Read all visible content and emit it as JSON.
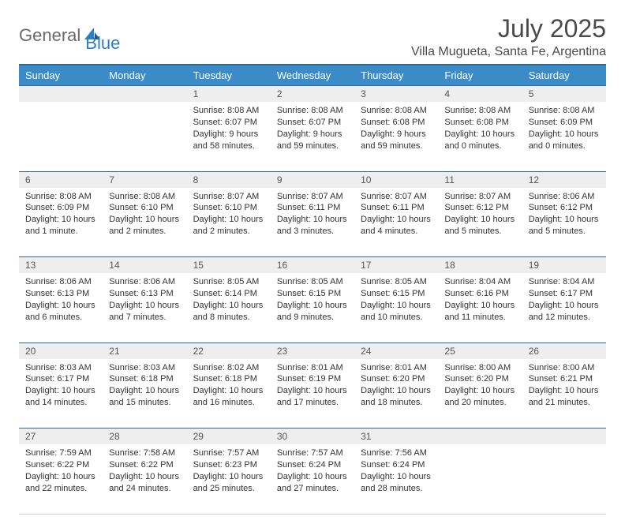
{
  "brand": {
    "part1": "General",
    "part2": "Blue"
  },
  "title": "July 2025",
  "location": "Villa Mugueta, Santa Fe, Argentina",
  "day_headers": [
    "Sunday",
    "Monday",
    "Tuesday",
    "Wednesday",
    "Thursday",
    "Friday",
    "Saturday"
  ],
  "colors": {
    "header_bg": "#3b8bc9",
    "header_border": "#2d6aa0",
    "daynum_bg": "#eeeeee",
    "text": "#333333",
    "brand_gray": "#6a6a6a",
    "brand_blue": "#2d7fc1"
  },
  "weeks": [
    [
      null,
      null,
      {
        "n": "1",
        "sr": "8:08 AM",
        "ss": "6:07 PM",
        "dl": "9 hours and 58 minutes."
      },
      {
        "n": "2",
        "sr": "8:08 AM",
        "ss": "6:07 PM",
        "dl": "9 hours and 59 minutes."
      },
      {
        "n": "3",
        "sr": "8:08 AM",
        "ss": "6:08 PM",
        "dl": "9 hours and 59 minutes."
      },
      {
        "n": "4",
        "sr": "8:08 AM",
        "ss": "6:08 PM",
        "dl": "10 hours and 0 minutes."
      },
      {
        "n": "5",
        "sr": "8:08 AM",
        "ss": "6:09 PM",
        "dl": "10 hours and 0 minutes."
      }
    ],
    [
      {
        "n": "6",
        "sr": "8:08 AM",
        "ss": "6:09 PM",
        "dl": "10 hours and 1 minute."
      },
      {
        "n": "7",
        "sr": "8:08 AM",
        "ss": "6:10 PM",
        "dl": "10 hours and 2 minutes."
      },
      {
        "n": "8",
        "sr": "8:07 AM",
        "ss": "6:10 PM",
        "dl": "10 hours and 2 minutes."
      },
      {
        "n": "9",
        "sr": "8:07 AM",
        "ss": "6:11 PM",
        "dl": "10 hours and 3 minutes."
      },
      {
        "n": "10",
        "sr": "8:07 AM",
        "ss": "6:11 PM",
        "dl": "10 hours and 4 minutes."
      },
      {
        "n": "11",
        "sr": "8:07 AM",
        "ss": "6:12 PM",
        "dl": "10 hours and 5 minutes."
      },
      {
        "n": "12",
        "sr": "8:06 AM",
        "ss": "6:12 PM",
        "dl": "10 hours and 5 minutes."
      }
    ],
    [
      {
        "n": "13",
        "sr": "8:06 AM",
        "ss": "6:13 PM",
        "dl": "10 hours and 6 minutes."
      },
      {
        "n": "14",
        "sr": "8:06 AM",
        "ss": "6:13 PM",
        "dl": "10 hours and 7 minutes."
      },
      {
        "n": "15",
        "sr": "8:05 AM",
        "ss": "6:14 PM",
        "dl": "10 hours and 8 minutes."
      },
      {
        "n": "16",
        "sr": "8:05 AM",
        "ss": "6:15 PM",
        "dl": "10 hours and 9 minutes."
      },
      {
        "n": "17",
        "sr": "8:05 AM",
        "ss": "6:15 PM",
        "dl": "10 hours and 10 minutes."
      },
      {
        "n": "18",
        "sr": "8:04 AM",
        "ss": "6:16 PM",
        "dl": "10 hours and 11 minutes."
      },
      {
        "n": "19",
        "sr": "8:04 AM",
        "ss": "6:17 PM",
        "dl": "10 hours and 12 minutes."
      }
    ],
    [
      {
        "n": "20",
        "sr": "8:03 AM",
        "ss": "6:17 PM",
        "dl": "10 hours and 14 minutes."
      },
      {
        "n": "21",
        "sr": "8:03 AM",
        "ss": "6:18 PM",
        "dl": "10 hours and 15 minutes."
      },
      {
        "n": "22",
        "sr": "8:02 AM",
        "ss": "6:18 PM",
        "dl": "10 hours and 16 minutes."
      },
      {
        "n": "23",
        "sr": "8:01 AM",
        "ss": "6:19 PM",
        "dl": "10 hours and 17 minutes."
      },
      {
        "n": "24",
        "sr": "8:01 AM",
        "ss": "6:20 PM",
        "dl": "10 hours and 18 minutes."
      },
      {
        "n": "25",
        "sr": "8:00 AM",
        "ss": "6:20 PM",
        "dl": "10 hours and 20 minutes."
      },
      {
        "n": "26",
        "sr": "8:00 AM",
        "ss": "6:21 PM",
        "dl": "10 hours and 21 minutes."
      }
    ],
    [
      {
        "n": "27",
        "sr": "7:59 AM",
        "ss": "6:22 PM",
        "dl": "10 hours and 22 minutes."
      },
      {
        "n": "28",
        "sr": "7:58 AM",
        "ss": "6:22 PM",
        "dl": "10 hours and 24 minutes."
      },
      {
        "n": "29",
        "sr": "7:57 AM",
        "ss": "6:23 PM",
        "dl": "10 hours and 25 minutes."
      },
      {
        "n": "30",
        "sr": "7:57 AM",
        "ss": "6:24 PM",
        "dl": "10 hours and 27 minutes."
      },
      {
        "n": "31",
        "sr": "7:56 AM",
        "ss": "6:24 PM",
        "dl": "10 hours and 28 minutes."
      },
      null,
      null
    ]
  ],
  "labels": {
    "sunrise": "Sunrise: ",
    "sunset": "Sunset: ",
    "daylight": "Daylight: "
  }
}
